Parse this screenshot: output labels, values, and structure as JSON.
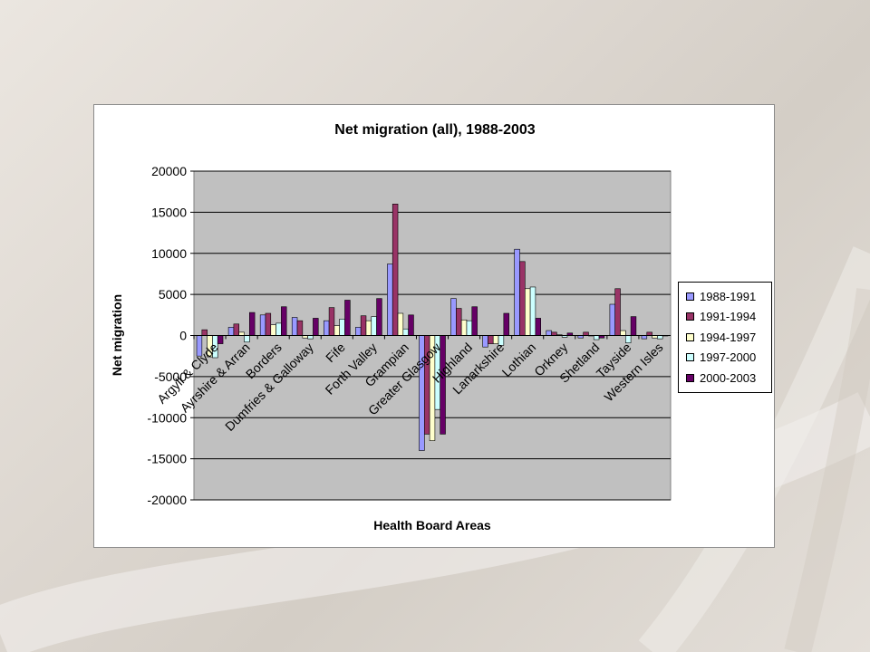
{
  "chart_data": {
    "type": "bar",
    "title": "Net migration (all), 1988-2003",
    "xlabel": "Health Board Areas",
    "ylabel": "Net migration",
    "ylim": [
      -20000,
      20000
    ],
    "yticks": [
      20000,
      15000,
      10000,
      5000,
      0,
      -5000,
      -10000,
      -15000,
      -20000
    ],
    "ytick_labels": [
      "20000",
      "15000",
      "10000",
      "5000",
      "0",
      "-5000",
      "-10000",
      "-15000",
      "-20000"
    ],
    "grid": true,
    "legend_position": "right",
    "categories": [
      "Argyll & Clyde",
      "Ayrshire & Arran",
      "Borders",
      "Dumfries & Galloway",
      "Fife",
      "Forth Valley",
      "Grampian",
      "Greater Glasgow",
      "Highland",
      "Lanarkshire",
      "Lothian",
      "Orkney",
      "Shetland",
      "Tayside",
      "Western Isles"
    ],
    "series": [
      {
        "name": "1988-1991",
        "color": "#9999ff",
        "values": [
          -2500,
          1000,
          2500,
          2200,
          1800,
          1000,
          8700,
          -14000,
          4500,
          -1400,
          10500,
          600,
          -300,
          3800,
          -400
        ]
      },
      {
        "name": "1991-1994",
        "color": "#993366",
        "values": [
          700,
          1400,
          2700,
          1800,
          3400,
          2400,
          16000,
          -12000,
          3300,
          -1000,
          9000,
          400,
          400,
          5700,
          400
        ]
      },
      {
        "name": "1994-1997",
        "color": "#ffffcc",
        "values": [
          -2600,
          400,
          1300,
          -300,
          1200,
          1800,
          2700,
          -12800,
          1900,
          -1000,
          5700,
          100,
          0,
          600,
          -300
        ]
      },
      {
        "name": "1997-2000",
        "color": "#ccffff",
        "values": [
          -2700,
          -800,
          1500,
          -400,
          2000,
          2300,
          800,
          -9000,
          1800,
          -1200,
          5900,
          -200,
          -500,
          -900,
          -400
        ]
      },
      {
        "name": "2000-2003",
        "color": "#660066",
        "values": [
          -1000,
          2800,
          3500,
          2100,
          4300,
          4500,
          2500,
          -12000,
          3500,
          2700,
          2100,
          300,
          -300,
          2300,
          0
        ]
      }
    ]
  }
}
